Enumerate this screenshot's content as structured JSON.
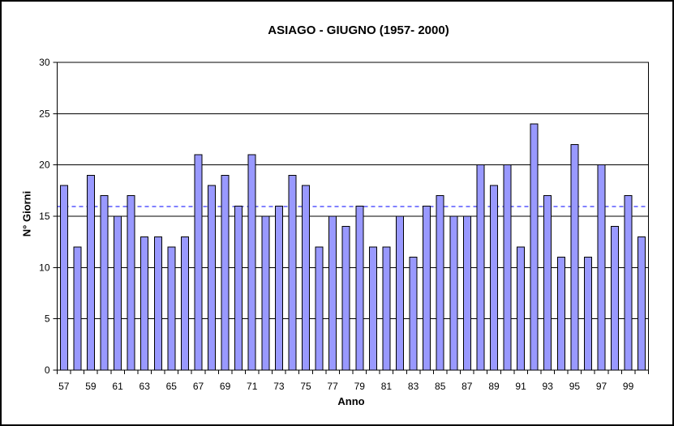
{
  "chart_data": {
    "type": "bar",
    "title": "ASIAGO - GIUGNO (1957- 2000)",
    "xlabel": "Anno",
    "ylabel": "N° Giorni",
    "categories": [
      "57",
      "58",
      "59",
      "60",
      "61",
      "62",
      "63",
      "64",
      "65",
      "66",
      "67",
      "68",
      "69",
      "70",
      "71",
      "72",
      "73",
      "74",
      "75",
      "76",
      "77",
      "78",
      "79",
      "80",
      "81",
      "82",
      "83",
      "84",
      "85",
      "86",
      "87",
      "88",
      "89",
      "90",
      "91",
      "92",
      "93",
      "94",
      "95",
      "96",
      "97",
      "98",
      "99",
      "00"
    ],
    "values": [
      18,
      12,
      19,
      17,
      15,
      17,
      13,
      13,
      12,
      13,
      21,
      18,
      19,
      16,
      21,
      15,
      16,
      19,
      18,
      12,
      15,
      14,
      16,
      12,
      12,
      15,
      11,
      16,
      17,
      15,
      15,
      20,
      18,
      20,
      12,
      24,
      17,
      11,
      22,
      11,
      20,
      14,
      17,
      13
    ],
    "ylim": [
      0,
      30
    ],
    "yticks": [
      0,
      5,
      10,
      15,
      20,
      25,
      30
    ],
    "xtick_labels": [
      "57",
      "59",
      "61",
      "63",
      "65",
      "67",
      "69",
      "71",
      "73",
      "75",
      "77",
      "79",
      "81",
      "83",
      "85",
      "87",
      "89",
      "91",
      "93",
      "95",
      "97",
      "99"
    ],
    "grid": true,
    "legend": "none",
    "mean_line": {
      "value": 15.93,
      "style": "dashed",
      "color": "#0000ff"
    },
    "colors": {
      "bar_fill": "#9999ff",
      "bar_border": "#000000",
      "gridline": "#000000",
      "axis": "#000000",
      "text": "#000000",
      "background": "#ffffff"
    }
  }
}
